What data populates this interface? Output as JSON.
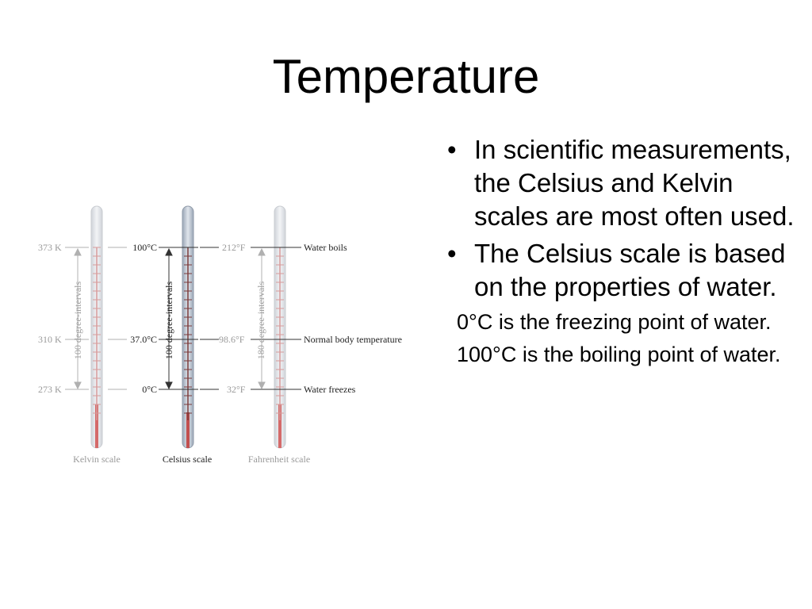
{
  "title": "Temperature",
  "figure": {
    "kelvin": {
      "boil": "373 K",
      "body": "310 K",
      "freeze": "273 K",
      "interval": "100 degree-intervals",
      "scale_name": "Kelvin scale"
    },
    "celsius": {
      "boil": "100°C",
      "body": "37.0°C",
      "freeze": "0°C",
      "interval": "100 degree-intervals",
      "scale_name": "Celsius scale"
    },
    "fahrenheit": {
      "boil": "212°F",
      "body": "98.6°F",
      "freeze": "32°F",
      "interval": "180 degree-intervals",
      "scale_name": "Fahrenheit scale"
    },
    "labels": {
      "boil": "Water boils",
      "body": "Normal body temperature",
      "freeze": "Water freezes"
    },
    "colors": {
      "tube": "#e4e6ea",
      "tube_highlight": "#b5bfcc",
      "ticks": "#c87878",
      "mercury": "#d46a6a"
    }
  },
  "bullets": [
    {
      "text": "In scientific measurements, the Celsius and Kelvin scales are most often used."
    },
    {
      "text": "The Celsius scale is based on the properties of water."
    }
  ],
  "subpoints": [
    {
      "text": "0°C is the freezing point of water."
    },
    {
      "text": "100°C is the boiling point of water."
    }
  ]
}
